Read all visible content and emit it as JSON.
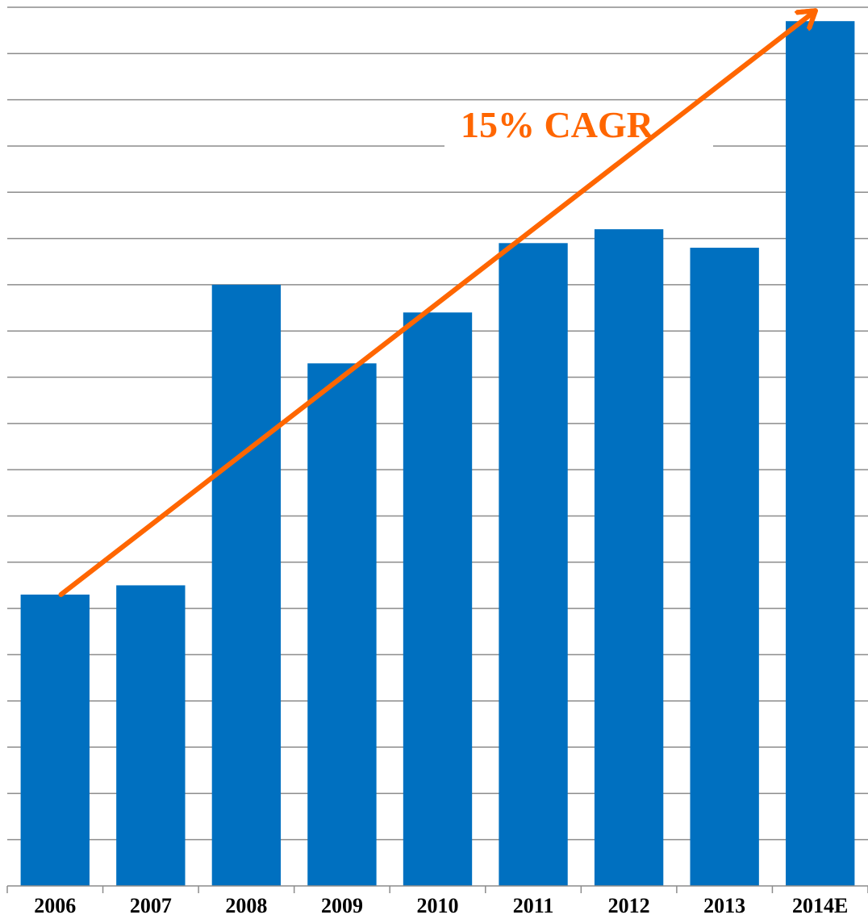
{
  "chart_data": {
    "type": "bar",
    "categories": [
      "2006",
      "2007",
      "2008",
      "2009",
      "2010",
      "2011",
      "2012",
      "2013",
      "2014E"
    ],
    "values": [
      6.3,
      6.5,
      13.0,
      11.3,
      12.4,
      13.9,
      14.2,
      13.8,
      18.7
    ],
    "ylim": [
      0,
      19.0
    ],
    "grid": true,
    "bar_color": "#0070C0",
    "annotation": {
      "text": "15% CAGR",
      "color": "#FF6600",
      "arrow_from": {
        "x": "2006",
        "y": 6.3
      },
      "arrow_to": {
        "x": "2014E",
        "y": 18.9
      }
    }
  }
}
